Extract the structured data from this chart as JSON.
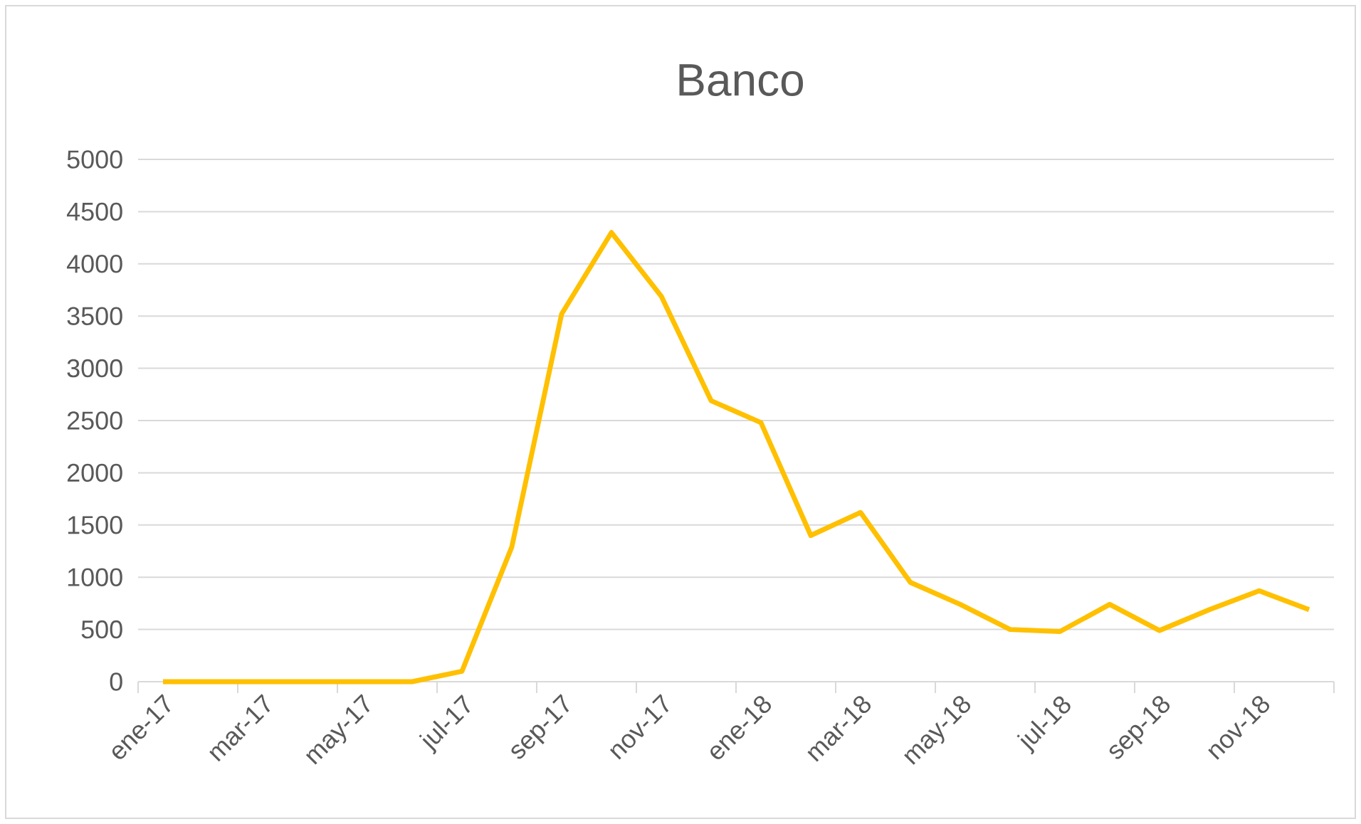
{
  "chart_data": {
    "type": "line",
    "title": "Banco",
    "categories": [
      "ene-17",
      null,
      "mar-17",
      null,
      "may-17",
      null,
      "jul-17",
      null,
      "sep-17",
      null,
      "nov-17",
      null,
      "ene-18",
      null,
      "mar-18",
      null,
      "may-18",
      null,
      "jul-18",
      null,
      "sep-18",
      null,
      "nov-18",
      null
    ],
    "values": [
      0,
      0,
      0,
      0,
      0,
      0,
      100,
      1290,
      3520,
      4300,
      3690,
      2690,
      2480,
      1400,
      1620,
      950,
      740,
      500,
      480,
      740,
      490,
      690,
      870,
      690
    ],
    "color": "#ffc000",
    "ylim": [
      0,
      5000
    ],
    "yticks": [
      0,
      500,
      1000,
      1500,
      2000,
      2500,
      3000,
      3500,
      4000,
      4500,
      5000
    ],
    "grid": "y",
    "marker": "none",
    "line_style": "solid"
  }
}
